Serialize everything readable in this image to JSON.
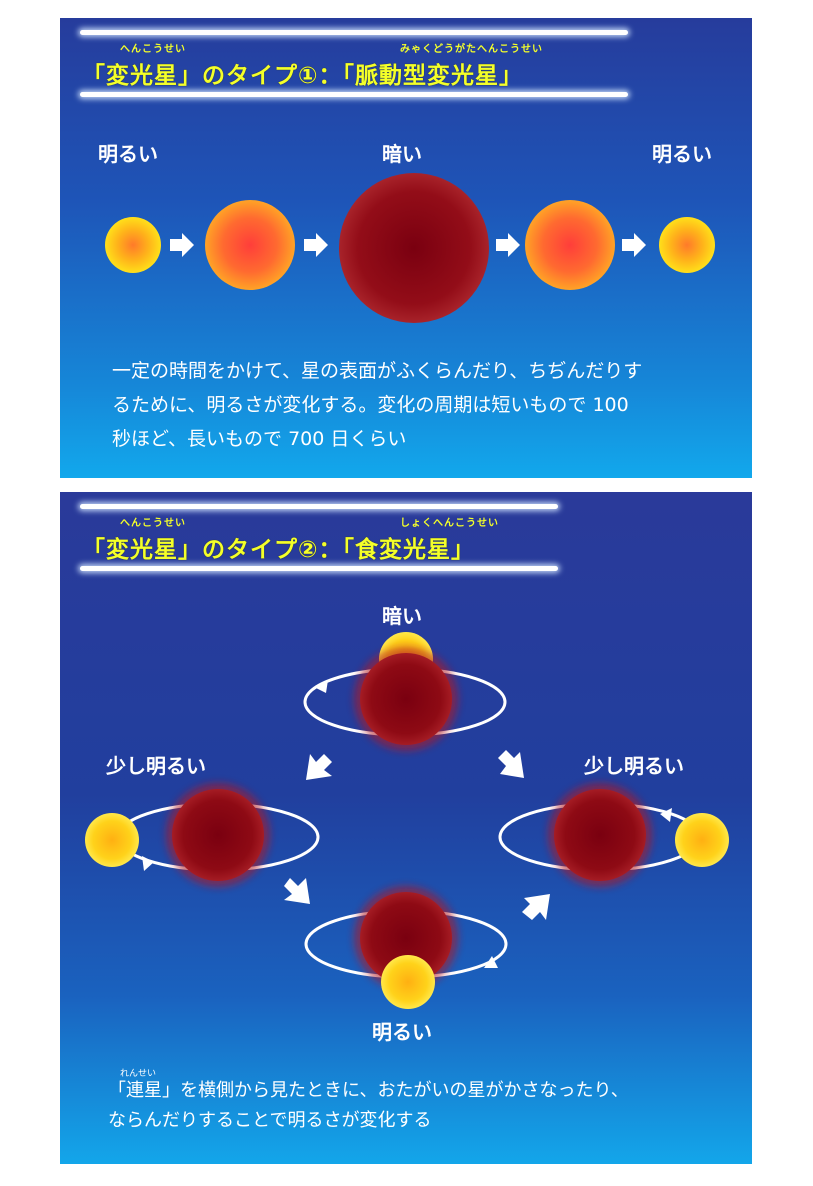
{
  "panel1": {
    "heading_main": "「変光星」のタイプ①：「脈動型変光星」",
    "ruby_henkousei": "へんこうせい",
    "ruby_myakudou": "みゃくどうがたへんこうせい",
    "label_left": "明るい",
    "label_center": "暗い",
    "label_right": "明るい",
    "desc_line1": "一定の時間をかけて、星の表面がふくらんだり、ちぢんだりす",
    "desc_line2": "るために、明るさが変化する。変化の周期は短いもので 100",
    "desc_line3": "秒ほど、長いもので 700 日くらい"
  },
  "panel2": {
    "heading_main": "「変光星」のタイプ②：「食変光星」",
    "ruby_henkousei": "へんこうせい",
    "ruby_shoku": "しょくへんこうせい",
    "label_top": "暗い",
    "label_left": "少し明るい",
    "label_right": "少し明るい",
    "label_bottom": "明るい",
    "ruby_rensei": "れんせい",
    "desc_line1": "「連星」を横側から見たときに、おたがいの星がかさなったり、",
    "desc_line2": "ならんだりすることで明るさが変化する"
  },
  "colors": {
    "heading_yellow": "#f4ff2a",
    "star_yellow": "#ffd21a",
    "star_orange": "#ff7a30",
    "star_dark_red": "#8e0a14"
  }
}
